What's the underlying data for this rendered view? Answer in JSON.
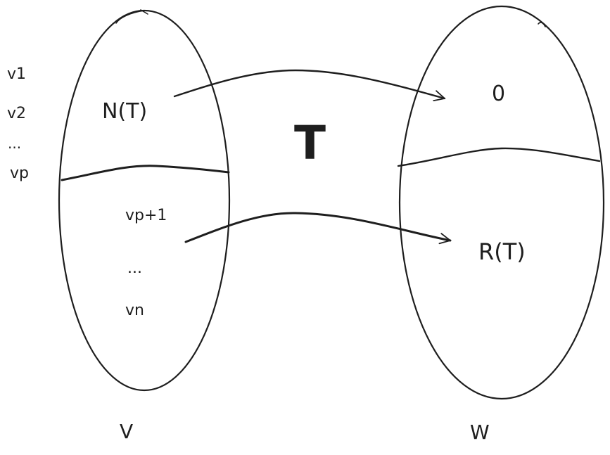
{
  "colors": {
    "ink": "#1e1e1e",
    "background": "#ffffff"
  },
  "domain_space": {
    "label": "V",
    "basis_outside": [
      "v1",
      "v2",
      "...",
      "vp"
    ],
    "basis_inside": [
      "vp+1",
      "...",
      "vn"
    ],
    "kernel_label": "N(T)"
  },
  "codomain_space": {
    "label": "W",
    "zero_label": "0",
    "range_label": "R(T)"
  },
  "map_label": "T"
}
